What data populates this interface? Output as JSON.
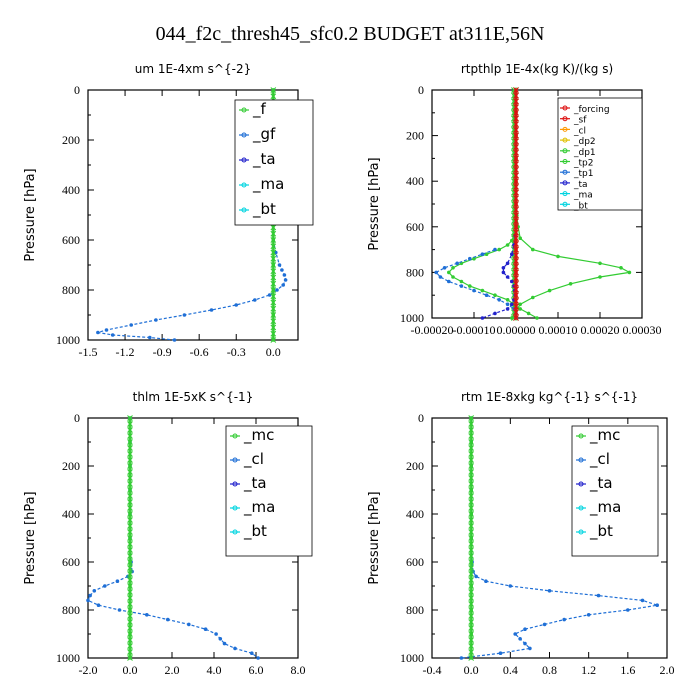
{
  "figure_title": "044_f2c_thresh45_sfc0.2  BUDGET at311E,56N",
  "colors": {
    "frame": "#000000",
    "green": "#33cc33",
    "blue": "#1f6fd6",
    "darkblue": "#2222cc",
    "cyan": "#00d4e0",
    "red": "#dd1111",
    "orange": "#ff9900",
    "yellow": "#e0c000",
    "purple": "#3333cc"
  },
  "chart_data": [
    {
      "type": "line",
      "title": "um   1E-4xm s^{-2}",
      "ylabel": "Pressure [hPa]",
      "xlim": [
        -1.5,
        0.2
      ],
      "ylim": [
        1000,
        0
      ],
      "xticks": [
        -1.5,
        -1.2,
        -0.9,
        -0.6,
        -0.3,
        0.0
      ],
      "xtick_labels": [
        "-1.5",
        "-1.2",
        "-0.9",
        "-0.6",
        "-0.3",
        "0.0"
      ],
      "yticks": [
        0,
        200,
        400,
        600,
        800,
        1000
      ],
      "ytick_labels": [
        "0",
        "200",
        "400",
        "600",
        "800",
        "1000"
      ],
      "legend_position": "top-right",
      "legend": [
        "_f",
        "_gf",
        "_ta",
        "_ma",
        "_bt"
      ],
      "series": [
        {
          "name": "_gf",
          "color_key": "blue",
          "p": [
            0,
            50,
            100,
            200,
            300,
            400,
            500,
            600,
            650,
            700,
            720,
            740,
            760,
            780,
            800,
            820,
            840,
            860,
            880,
            900,
            920,
            940,
            960,
            970,
            980,
            990,
            1000
          ],
          "x": [
            0.0,
            0.0,
            0.0,
            0.0,
            0.0,
            0.0,
            0.0,
            0.0,
            0.02,
            0.05,
            0.07,
            0.09,
            0.1,
            0.08,
            0.03,
            -0.03,
            -0.15,
            -0.3,
            -0.5,
            -0.72,
            -0.95,
            -1.15,
            -1.35,
            -1.42,
            -1.3,
            -1.0,
            -0.8
          ]
        },
        {
          "name": "_f",
          "color_key": "green",
          "p": [
            0,
            100,
            200,
            300,
            400,
            500,
            600,
            700,
            800,
            900,
            1000
          ],
          "x": [
            0.0,
            0.0,
            0.0,
            0.0,
            0.0,
            0.0,
            0.0,
            0.0,
            0.0,
            0.0,
            0.0
          ]
        }
      ]
    },
    {
      "type": "line",
      "title": "rtpthlp   1E-4x(kg K)/(kg s)",
      "ylabel": "Pressure [hPa]",
      "xlim": [
        -0.0002,
        0.0003
      ],
      "ylim": [
        1000,
        0
      ],
      "xticks": [
        -0.0002,
        -0.0001,
        0.0,
        0.0001,
        0.0002,
        0.0003
      ],
      "xtick_labels": [
        "-0.00020",
        "-0.00010",
        "0.00000",
        "0.00010",
        "0.00020",
        "0.00030"
      ],
      "yticks": [
        0,
        200,
        400,
        600,
        800,
        1000
      ],
      "ytick_labels": [
        "0",
        "200",
        "400",
        "600",
        "800",
        "1000"
      ],
      "legend_position": "top-right",
      "legend": [
        "_forcing",
        "_sf",
        "_cl",
        "_dp2",
        "_dp1",
        "_tp2",
        "_tp1",
        "_ta",
        "_ma",
        "_bt"
      ],
      "series": [
        {
          "name": "_dp1",
          "color_key": "green",
          "p": [
            0,
            100,
            200,
            300,
            400,
            500,
            550,
            600,
            650,
            700,
            730,
            760,
            780,
            800,
            820,
            850,
            880,
            910,
            940,
            970,
            1000
          ],
          "x": [
            0.0,
            0.0,
            0.0,
            0.0,
            0.0,
            0.0,
            2e-06,
            5e-06,
            1e-05,
            4e-05,
            0.0001,
            0.0002,
            0.00025,
            0.00027,
            0.0002,
            0.00013,
            8e-05,
            4e-05,
            1e-05,
            0.0,
            -1e-05
          ]
        },
        {
          "name": "_tp2",
          "color_key": "green",
          "p": [
            640,
            660,
            680,
            700,
            720,
            740,
            760,
            780,
            800,
            820,
            840,
            860,
            880,
            900,
            920,
            940,
            960,
            980,
            1000
          ],
          "x": [
            -5e-06,
            -1e-05,
            -2e-05,
            -4e-05,
            -7e-05,
            -0.0001,
            -0.00013,
            -0.00015,
            -0.00016,
            -0.00015,
            -0.00013,
            -0.00011,
            -8e-05,
            -5e-05,
            -2e-05,
            -5e-06,
            1e-05,
            3e-05,
            5e-05
          ]
        },
        {
          "name": "_ta",
          "color_key": "darkblue",
          "p": [
            640,
            680,
            720,
            760,
            780,
            800,
            820,
            840,
            860,
            880,
            900,
            920,
            940,
            960,
            980,
            1000
          ],
          "x": [
            -2e-06,
            -5e-06,
            -1e-05,
            -2e-05,
            -3e-05,
            -3e-05,
            -2e-05,
            -1e-05,
            -5e-06,
            -3e-06,
            -2e-06,
            -5e-06,
            -1e-05,
            -2e-05,
            -5e-05,
            -8e-05
          ]
        },
        {
          "name": "_tp1",
          "color_key": "blue",
          "p": [
            700,
            720,
            740,
            760,
            780,
            800,
            820,
            840,
            860,
            880,
            900,
            920,
            940,
            960,
            980,
            1000
          ],
          "x": [
            -5e-05,
            -8e-05,
            -0.00011,
            -0.00014,
            -0.00017,
            -0.00019,
            -0.00018,
            -0.00016,
            -0.00013,
            -0.0001,
            -7e-05,
            -4e-05,
            -2e-05,
            -5e-06,
            0.0,
            0.0
          ]
        },
        {
          "name": "_forcing",
          "color_key": "red",
          "p": [
            0,
            100,
            200,
            300,
            400,
            500,
            600,
            700,
            800,
            900,
            1000
          ],
          "x": [
            0.0,
            0.0,
            0.0,
            0.0,
            0.0,
            0.0,
            0.0,
            0.0,
            0.0,
            0.0,
            0.0
          ]
        }
      ]
    },
    {
      "type": "line",
      "title": "thlm   1E-5xK s^{-1}",
      "ylabel": "Pressure [hPa]",
      "xlim": [
        -2.0,
        8.0
      ],
      "ylim": [
        1000,
        0
      ],
      "xticks": [
        -2.0,
        0.0,
        2.0,
        4.0,
        6.0,
        8.0
      ],
      "xtick_labels": [
        "-2.0",
        "0.0",
        "2.0",
        "4.0",
        "6.0",
        "8.0"
      ],
      "yticks": [
        0,
        200,
        400,
        600,
        800,
        1000
      ],
      "ytick_labels": [
        "0",
        "200",
        "400",
        "600",
        "800",
        "1000"
      ],
      "legend_position": "top-right",
      "legend": [
        "_mc",
        "_cl",
        "_ta",
        "_ma",
        "_bt"
      ],
      "series": [
        {
          "name": "_cl",
          "color_key": "blue",
          "p": [
            0,
            100,
            200,
            300,
            400,
            500,
            600,
            640,
            660,
            680,
            700,
            720,
            740,
            760,
            780,
            800,
            820,
            840,
            860,
            880,
            900,
            920,
            940,
            960,
            980,
            1000
          ],
          "x": [
            0.0,
            0.0,
            0.0,
            0.0,
            0.0,
            0.0,
            0.05,
            0.1,
            -0.1,
            -0.6,
            -1.2,
            -1.7,
            -1.9,
            -2.0,
            -1.5,
            -0.5,
            0.8,
            1.8,
            2.8,
            3.6,
            4.1,
            4.3,
            4.5,
            5.0,
            5.8,
            6.1
          ]
        },
        {
          "name": "_mc",
          "color_key": "green",
          "p": [
            0,
            100,
            200,
            300,
            400,
            500,
            600,
            700,
            800,
            900,
            1000
          ],
          "x": [
            0.0,
            0.0,
            0.0,
            0.0,
            0.0,
            0.0,
            0.0,
            0.0,
            0.0,
            0.0,
            0.0
          ]
        }
      ]
    },
    {
      "type": "line",
      "title": "rtm   1E-8xkg kg^{-1} s^{-1}",
      "ylabel": "Pressure [hPa]",
      "xlim": [
        -0.4,
        2.0
      ],
      "ylim": [
        1000,
        0
      ],
      "xticks": [
        -0.4,
        0.0,
        0.4,
        0.8,
        1.2,
        1.6,
        2.0
      ],
      "xtick_labels": [
        "-0.4",
        "0.0",
        "0.4",
        "0.8",
        "1.2",
        "1.6",
        "2.0"
      ],
      "yticks": [
        0,
        200,
        400,
        600,
        800,
        1000
      ],
      "ytick_labels": [
        "0",
        "200",
        "400",
        "600",
        "800",
        "1000"
      ],
      "legend_position": "top-right",
      "legend": [
        "_mc",
        "_cl",
        "_ta",
        "_ma",
        "_bt"
      ],
      "series": [
        {
          "name": "_cl",
          "color_key": "blue",
          "p": [
            0,
            100,
            200,
            300,
            400,
            500,
            600,
            640,
            660,
            680,
            700,
            720,
            740,
            760,
            780,
            800,
            820,
            840,
            860,
            880,
            900,
            920,
            940,
            960,
            980,
            1000
          ],
          "x": [
            0.0,
            0.0,
            0.0,
            0.0,
            0.0,
            0.0,
            0.01,
            0.02,
            0.05,
            0.15,
            0.4,
            0.8,
            1.3,
            1.75,
            1.9,
            1.6,
            1.2,
            0.95,
            0.75,
            0.55,
            0.45,
            0.5,
            0.55,
            0.6,
            0.3,
            -0.1
          ]
        },
        {
          "name": "_mc",
          "color_key": "green",
          "p": [
            0,
            100,
            200,
            300,
            400,
            500,
            600,
            700,
            800,
            900,
            1000
          ],
          "x": [
            0.0,
            0.0,
            0.0,
            0.0,
            0.0,
            0.0,
            0.0,
            0.0,
            0.0,
            0.0,
            0.0
          ]
        }
      ]
    }
  ]
}
